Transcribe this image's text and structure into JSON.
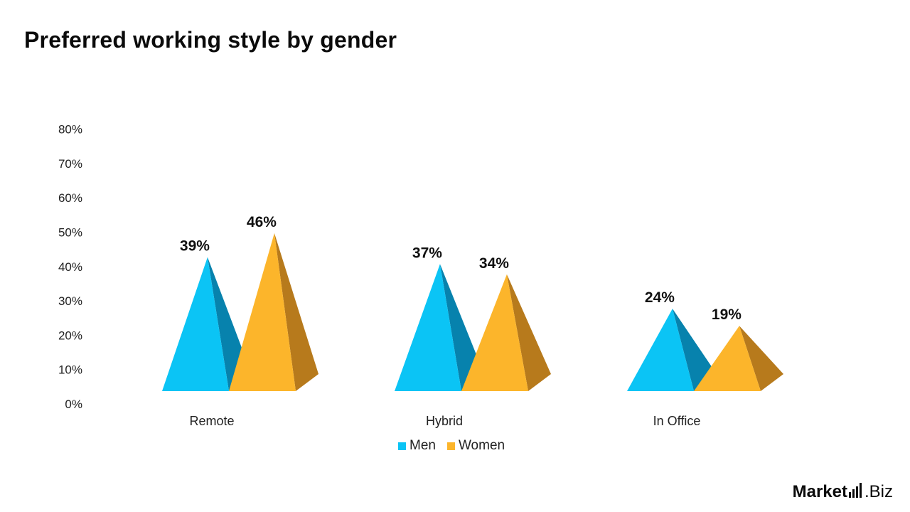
{
  "chart_data": {
    "type": "bar",
    "style": "3d-pyramid",
    "title": "Preferred working style by gender",
    "categories": [
      "Remote",
      "Hybrid",
      "In Office"
    ],
    "series": [
      {
        "name": "Men",
        "values": [
          39,
          37,
          24
        ],
        "labels": [
          "39%",
          "37%",
          "24%"
        ],
        "color": "#0bc4f5",
        "shade": "#0782ad"
      },
      {
        "name": "Women",
        "values": [
          46,
          34,
          19
        ],
        "labels": [
          "46%",
          "34%",
          "19%"
        ],
        "color": "#fcb52b",
        "shade": "#b77a1c"
      }
    ],
    "ylim": [
      0,
      80
    ],
    "yticks": [
      "0%",
      "10%",
      "20%",
      "30%",
      "40%",
      "50%",
      "60%",
      "70%",
      "80%"
    ],
    "grid": false,
    "legend": "bottom-center"
  },
  "brand": {
    "part1": "Market",
    "part2": ".Biz"
  }
}
